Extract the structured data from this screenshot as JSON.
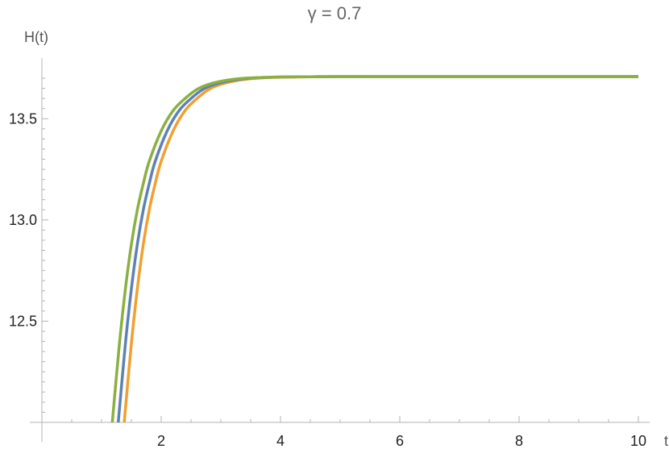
{
  "chart_data": {
    "type": "line",
    "title": "γ = 0.7",
    "xlabel": "t",
    "ylabel": "H(t)",
    "xlim": [
      0,
      10.2
    ],
    "ylim": [
      12.0,
      13.72
    ],
    "x_ticks": [
      2,
      4,
      6,
      8,
      10
    ],
    "x_tick_labels": [
      "2",
      "4",
      "6",
      "8",
      "10"
    ],
    "y_ticks": [
      12.5,
      13.0,
      13.5
    ],
    "y_tick_labels": [
      "12.5",
      "13.0",
      "13.5"
    ],
    "grid": false,
    "legend": "none",
    "series": [
      {
        "color": "#F0A030",
        "x": [
          1.38,
          1.5,
          1.6,
          1.7,
          1.8,
          1.9,
          2.0,
          2.2,
          2.4,
          2.6,
          2.8,
          3.0,
          3.3,
          3.6,
          4.0,
          4.5,
          5.0,
          6.0,
          8.0,
          10.0
        ],
        "y": [
          12.0,
          12.39,
          12.66,
          12.88,
          13.05,
          13.18,
          13.29,
          13.44,
          13.54,
          13.6,
          13.645,
          13.67,
          13.69,
          13.7,
          13.705,
          13.707,
          13.708,
          13.708,
          13.708,
          13.708
        ]
      },
      {
        "color": "#5E81B5",
        "x": [
          1.28,
          1.4,
          1.5,
          1.6,
          1.7,
          1.8,
          1.9,
          2.1,
          2.3,
          2.5,
          2.7,
          2.9,
          3.2,
          3.5,
          4.0,
          4.5,
          5.0,
          6.0,
          8.0,
          10.0
        ],
        "y": [
          12.0,
          12.39,
          12.66,
          12.88,
          13.05,
          13.18,
          13.29,
          13.44,
          13.54,
          13.6,
          13.645,
          13.67,
          13.69,
          13.7,
          13.706,
          13.707,
          13.708,
          13.708,
          13.708,
          13.708
        ]
      },
      {
        "color": "#8AB040",
        "x": [
          1.18,
          1.3,
          1.4,
          1.5,
          1.6,
          1.7,
          1.8,
          2.0,
          2.2,
          2.4,
          2.6,
          2.8,
          3.1,
          3.4,
          4.0,
          4.5,
          5.0,
          6.0,
          8.0,
          10.0
        ],
        "y": [
          12.0,
          12.39,
          12.66,
          12.88,
          13.05,
          13.18,
          13.29,
          13.44,
          13.54,
          13.6,
          13.645,
          13.67,
          13.69,
          13.7,
          13.706,
          13.707,
          13.708,
          13.708,
          13.708,
          13.708
        ]
      }
    ]
  }
}
